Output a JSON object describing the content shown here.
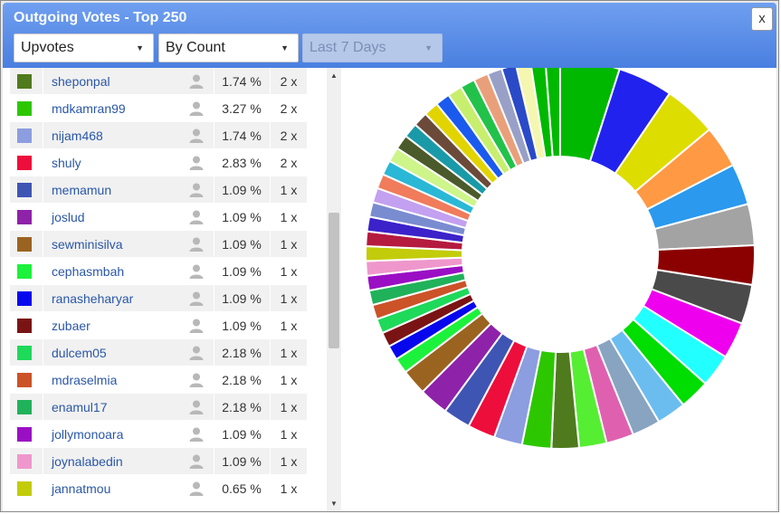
{
  "window": {
    "title": "Outgoing Votes - Top 250",
    "close_label": "x"
  },
  "filters": {
    "type": {
      "value": "Upvotes"
    },
    "sort": {
      "value": "By Count"
    },
    "period": {
      "value": "Last 7 Days",
      "disabled": true
    }
  },
  "rows": [
    {
      "name": "sheponpal",
      "percent": "1.74 %",
      "count": "2 x",
      "color": "#4f7a1e"
    },
    {
      "name": "mdkamran99",
      "percent": "3.27 %",
      "count": "2 x",
      "color": "#2dc700"
    },
    {
      "name": "nijam468",
      "percent": "1.74 %",
      "count": "2 x",
      "color": "#8c9de0"
    },
    {
      "name": "shuly",
      "percent": "2.83 %",
      "count": "2 x",
      "color": "#ee0e3c"
    },
    {
      "name": "memamun",
      "percent": "1.09 %",
      "count": "1 x",
      "color": "#3f55b3"
    },
    {
      "name": "joslud",
      "percent": "1.09 %",
      "count": "1 x",
      "color": "#8e22a8"
    },
    {
      "name": "sewminisilva",
      "percent": "1.09 %",
      "count": "1 x",
      "color": "#9b6320"
    },
    {
      "name": "cephasmbah",
      "percent": "1.09 %",
      "count": "1 x",
      "color": "#1cf23b"
    },
    {
      "name": "ranasheharyar",
      "percent": "1.09 %",
      "count": "1 x",
      "color": "#0707ee"
    },
    {
      "name": "zubaer",
      "percent": "1.09 %",
      "count": "1 x",
      "color": "#7a1414"
    },
    {
      "name": "dulcem05",
      "percent": "2.18 %",
      "count": "1 x",
      "color": "#1ed95a"
    },
    {
      "name": "mdraselmia",
      "percent": "2.18 %",
      "count": "1 x",
      "color": "#cc5228"
    },
    {
      "name": "enamul17",
      "percent": "2.18 %",
      "count": "1 x",
      "color": "#20b25a"
    },
    {
      "name": "jollymonoara",
      "percent": "1.09 %",
      "count": "1 x",
      "color": "#9a0fc4"
    },
    {
      "name": "joynalabedin",
      "percent": "1.09 %",
      "count": "1 x",
      "color": "#ef97cc"
    },
    {
      "name": "jannatmou",
      "percent": "0.65 %",
      "count": "1 x",
      "color": "#c3cc0a"
    }
  ],
  "chart_data": {
    "type": "pie",
    "donut": true,
    "values": [
      6.5,
      6.0,
      5.8,
      4.6,
      4.5,
      4.5,
      4.3,
      4.3,
      4.0,
      3.6,
      3.3,
      3.2,
      3.1,
      3.0,
      3.0,
      3.0,
      3.2,
      3.1,
      3.0,
      3.0,
      3.2,
      2.8,
      1.7,
      1.6,
      1.6,
      1.6,
      1.6,
      1.6,
      1.6,
      1.6,
      1.6,
      1.6,
      1.6,
      1.6,
      1.6,
      1.6,
      1.6,
      1.6,
      1.6,
      1.6,
      1.6,
      1.6,
      1.6,
      1.6,
      1.6,
      1.6,
      1.6,
      1.6,
      1.6,
      1.6,
      1.6
    ],
    "colors": [
      "#00b800",
      "#2222ee",
      "#dddd00",
      "#ff9944",
      "#2a99ee",
      "#a3a3a3",
      "#8b0000",
      "#4a4a4a",
      "#ee00ee",
      "#22ffff",
      "#00dd00",
      "#6bbdf0",
      "#88a4c0",
      "#e060b0",
      "#55ee33",
      "#4f7a1e",
      "#2dc700",
      "#8c9de0",
      "#ee0e3c",
      "#3f55b3",
      "#8e22a8",
      "#9b6320",
      "#1cf23b",
      "#0707ee",
      "#7a1414",
      "#1ed95a",
      "#cc5228",
      "#20b25a",
      "#9a0fc4",
      "#ef97cc",
      "#c3cc0a",
      "#b51a3f",
      "#3b22c9",
      "#7a8cd0",
      "#c3a0f0",
      "#f07c5c",
      "#2ab8d6",
      "#cdf58a",
      "#4a5a2a",
      "#1a9aa8",
      "#6b4a3a",
      "#e2d400",
      "#1a5aee",
      "#c8ee6e",
      "#22c24a",
      "#e9a07a",
      "#98a0c8",
      "#2a4ac8",
      "#f5f7b0",
      "#00b800",
      "#00b800"
    ]
  }
}
